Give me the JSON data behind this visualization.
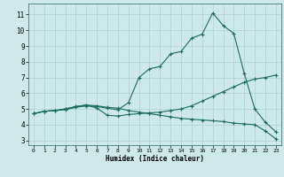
{
  "title": "",
  "xlabel": "Humidex (Indice chaleur)",
  "bg_color": "#cde9e9",
  "line_color": "#1a6b60",
  "grid_color": "#b0d5d5",
  "xlim": [
    -0.5,
    23.5
  ],
  "ylim": [
    2.7,
    11.7
  ],
  "xticks": [
    0,
    1,
    2,
    3,
    4,
    5,
    6,
    7,
    8,
    9,
    10,
    11,
    12,
    13,
    14,
    15,
    16,
    17,
    18,
    19,
    20,
    21,
    22,
    23
  ],
  "yticks": [
    3,
    4,
    5,
    6,
    7,
    8,
    9,
    10,
    11
  ],
  "line1_x": [
    0,
    1,
    2,
    3,
    4,
    5,
    6,
    7,
    8,
    9,
    10,
    11,
    12,
    13,
    14,
    15,
    16,
    17,
    18,
    19,
    20,
    21,
    22,
    23
  ],
  "line1_y": [
    4.7,
    4.85,
    4.9,
    4.95,
    5.1,
    5.2,
    5.15,
    5.05,
    4.95,
    5.4,
    7.0,
    7.55,
    7.7,
    8.5,
    8.65,
    9.5,
    9.75,
    11.1,
    10.3,
    9.8,
    7.25,
    5.0,
    4.15,
    3.55
  ],
  "line2_x": [
    0,
    1,
    2,
    3,
    4,
    5,
    6,
    7,
    8,
    9,
    10,
    11,
    12,
    13,
    14,
    15,
    16,
    17,
    18,
    19,
    20,
    21,
    22,
    23
  ],
  "line2_y": [
    4.7,
    4.85,
    4.9,
    5.0,
    5.15,
    5.25,
    5.05,
    4.6,
    4.55,
    4.65,
    4.7,
    4.75,
    4.8,
    4.9,
    5.0,
    5.2,
    5.5,
    5.8,
    6.1,
    6.4,
    6.7,
    6.9,
    7.0,
    7.15
  ],
  "line3_x": [
    0,
    1,
    2,
    3,
    4,
    5,
    6,
    7,
    8,
    9,
    10,
    11,
    12,
    13,
    14,
    15,
    16,
    17,
    18,
    19,
    20,
    21,
    22,
    23
  ],
  "line3_y": [
    4.7,
    4.85,
    4.9,
    5.0,
    5.15,
    5.25,
    5.2,
    5.1,
    5.05,
    4.9,
    4.8,
    4.7,
    4.6,
    4.5,
    4.4,
    4.35,
    4.3,
    4.25,
    4.2,
    4.1,
    4.05,
    4.0,
    3.6,
    3.1
  ]
}
